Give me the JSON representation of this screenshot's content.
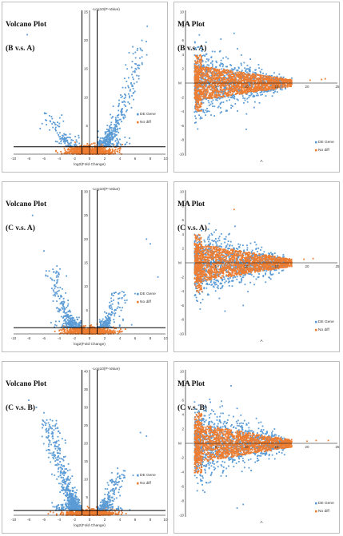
{
  "colors": {
    "de": "#5b9bd5",
    "nodiff": "#ed7d31",
    "axis": "#000000"
  },
  "legend": {
    "de_label": "DE Gene",
    "nodiff_label": "No diff"
  },
  "chart_data": [
    {
      "type": "scatter",
      "kind": "volcano",
      "title_line1": "Volcano Plot",
      "title_line2": "(B v.s. A)",
      "xlabel": "log2(Fold Change)",
      "ylabel": "-Log10(P-Value)",
      "xlim": [
        -10,
        10
      ],
      "ylim": [
        0,
        25
      ],
      "xticks": [
        -10,
        -8,
        -6,
        -4,
        -2,
        0,
        2,
        4,
        6,
        8,
        10
      ],
      "yticks": [
        5,
        10,
        15,
        20,
        25
      ],
      "threshold_x": [
        -1,
        1
      ],
      "threshold_y": 1.3,
      "left_arm": [
        [
          -3.0,
          2.0
        ],
        [
          -3.6,
          3.0
        ],
        [
          -4.2,
          4.2
        ],
        [
          -4.8,
          5.5
        ],
        [
          -5.3,
          7.0
        ]
      ],
      "right_arm": [
        [
          2.2,
          2.2
        ],
        [
          3.0,
          4.0
        ],
        [
          3.9,
          6.5
        ],
        [
          4.7,
          9.0
        ],
        [
          5.4,
          12.0
        ],
        [
          6.0,
          15.5
        ],
        [
          6.5,
          19.0
        ]
      ],
      "outliers": [
        [
          -8.2,
          21.0
        ],
        [
          7.6,
          22.5
        ],
        [
          6.9,
          20.0
        ],
        [
          -5.8,
          6.0
        ],
        [
          -6.5,
          4.5
        ]
      ],
      "left_count": 70,
      "right_count": 260
    },
    {
      "type": "scatter",
      "kind": "ma",
      "title_line1": "MA Plot",
      "title_line2": "(B v.s. A)",
      "xlabel": "A",
      "ylabel": "M",
      "xlim": [
        0,
        25
      ],
      "ylim": [
        -10,
        10
      ],
      "xticks": [
        5,
        10,
        15,
        20,
        25
      ],
      "yticks": [
        -10,
        -8,
        -6,
        -4,
        -2,
        2,
        4,
        6,
        8,
        10
      ],
      "spread_de": 5.0,
      "spread_nd": 2.4,
      "outliers": [
        [
          20.5,
          0.4
        ],
        [
          22.4,
          0.5
        ],
        [
          23.0,
          0.6
        ],
        [
          17.5,
          0.7
        ],
        [
          8.0,
          7.0
        ],
        [
          10.0,
          -6.5
        ]
      ]
    },
    {
      "type": "scatter",
      "kind": "volcano",
      "title_line1": "Volcano Plot",
      "title_line2": "(C v.s. A)",
      "xlabel": "log2(Fold Change)",
      "ylabel": "-Log10(P-Value)",
      "xlim": [
        -10,
        10
      ],
      "ylim": [
        0,
        30
      ],
      "xticks": [
        -10,
        -8,
        -6,
        -4,
        -2,
        0,
        2,
        4,
        6,
        8,
        10
      ],
      "yticks": [
        5,
        10,
        15,
        20,
        25,
        30
      ],
      "threshold_x": [
        -1,
        1
      ],
      "threshold_y": 1.3,
      "left_arm": [
        [
          -2.2,
          2.0
        ],
        [
          -3.0,
          4.0
        ],
        [
          -3.8,
          7.0
        ],
        [
          -4.5,
          10.5
        ],
        [
          -5.0,
          14.0
        ]
      ],
      "right_arm": [
        [
          2.0,
          2.0
        ],
        [
          2.8,
          4.0
        ],
        [
          3.5,
          6.5
        ],
        [
          4.2,
          9.0
        ]
      ],
      "outliers": [
        [
          -7.5,
          25.0
        ],
        [
          7.5,
          20.0
        ],
        [
          8.0,
          19.0
        ],
        [
          9.0,
          12.0
        ],
        [
          -6.0,
          17.5
        ],
        [
          6.0,
          8.5
        ]
      ],
      "left_count": 200,
      "right_count": 120
    },
    {
      "type": "scatter",
      "kind": "ma",
      "title_line1": "MA Plot",
      "title_line2": "(C v.s. A)",
      "xlabel": "A",
      "ylabel": "M",
      "xlim": [
        0,
        25
      ],
      "ylim": [
        -10,
        10
      ],
      "xticks": [
        5,
        10,
        15,
        20,
        25
      ],
      "yticks": [
        -10,
        -8,
        -6,
        -4,
        -2,
        2,
        4,
        6,
        8,
        10
      ],
      "spread_de": 5.0,
      "spread_nd": 2.6,
      "outliers": [
        [
          19.5,
          0.5
        ],
        [
          21.0,
          0.6
        ],
        [
          8.0,
          7.5
        ],
        [
          9.5,
          -6.0
        ],
        [
          6.5,
          -6.8
        ]
      ]
    },
    {
      "type": "scatter",
      "kind": "volcano",
      "title_line1": "Volcano Plot",
      "title_line2": "(C v.s. B)",
      "xlabel": "log2(Fold Change)",
      "ylabel": "-Log10(P-Value)",
      "xlim": [
        -10,
        10
      ],
      "ylim": [
        0,
        40
      ],
      "xticks": [
        -10,
        -8,
        -6,
        -4,
        -2,
        0,
        2,
        4,
        6,
        8,
        10
      ],
      "yticks": [
        5,
        10,
        15,
        20,
        25,
        30,
        35,
        40
      ],
      "threshold_x": [
        -1,
        1
      ],
      "threshold_y": 1.3,
      "left_arm": [
        [
          -2.0,
          3.0
        ],
        [
          -3.0,
          8.0
        ],
        [
          -4.0,
          15.0
        ],
        [
          -4.8,
          21.0
        ],
        [
          -5.5,
          26.0
        ]
      ],
      "right_arm": [
        [
          2.0,
          2.5
        ],
        [
          2.7,
          5.5
        ],
        [
          3.5,
          9.0
        ],
        [
          4.2,
          12.0
        ]
      ],
      "outliers": [
        [
          -8.0,
          32.0
        ],
        [
          -7.0,
          30.0
        ],
        [
          -6.0,
          28.5
        ],
        [
          6.7,
          23.0
        ],
        [
          7.5,
          22.0
        ]
      ],
      "left_count": 420,
      "right_count": 140
    },
    {
      "type": "scatter",
      "kind": "ma",
      "title_line1": "MA Plot",
      "title_line2": "(C v.s. B)",
      "xlabel": "A",
      "ylabel": "M",
      "xlim": [
        0,
        25
      ],
      "ylim": [
        -10,
        10
      ],
      "xticks": [
        5,
        10,
        15,
        20,
        25
      ],
      "yticks": [
        -10,
        -8,
        -6,
        -4,
        -2,
        2,
        4,
        6,
        8,
        10
      ],
      "spread_de": 5.5,
      "spread_nd": 2.6,
      "outliers": [
        [
          20.0,
          0.3
        ],
        [
          21.5,
          0.4
        ],
        [
          23.5,
          0.4
        ],
        [
          7.5,
          8.0
        ],
        [
          8.5,
          -9.0
        ],
        [
          9.5,
          -8.5
        ]
      ]
    }
  ]
}
